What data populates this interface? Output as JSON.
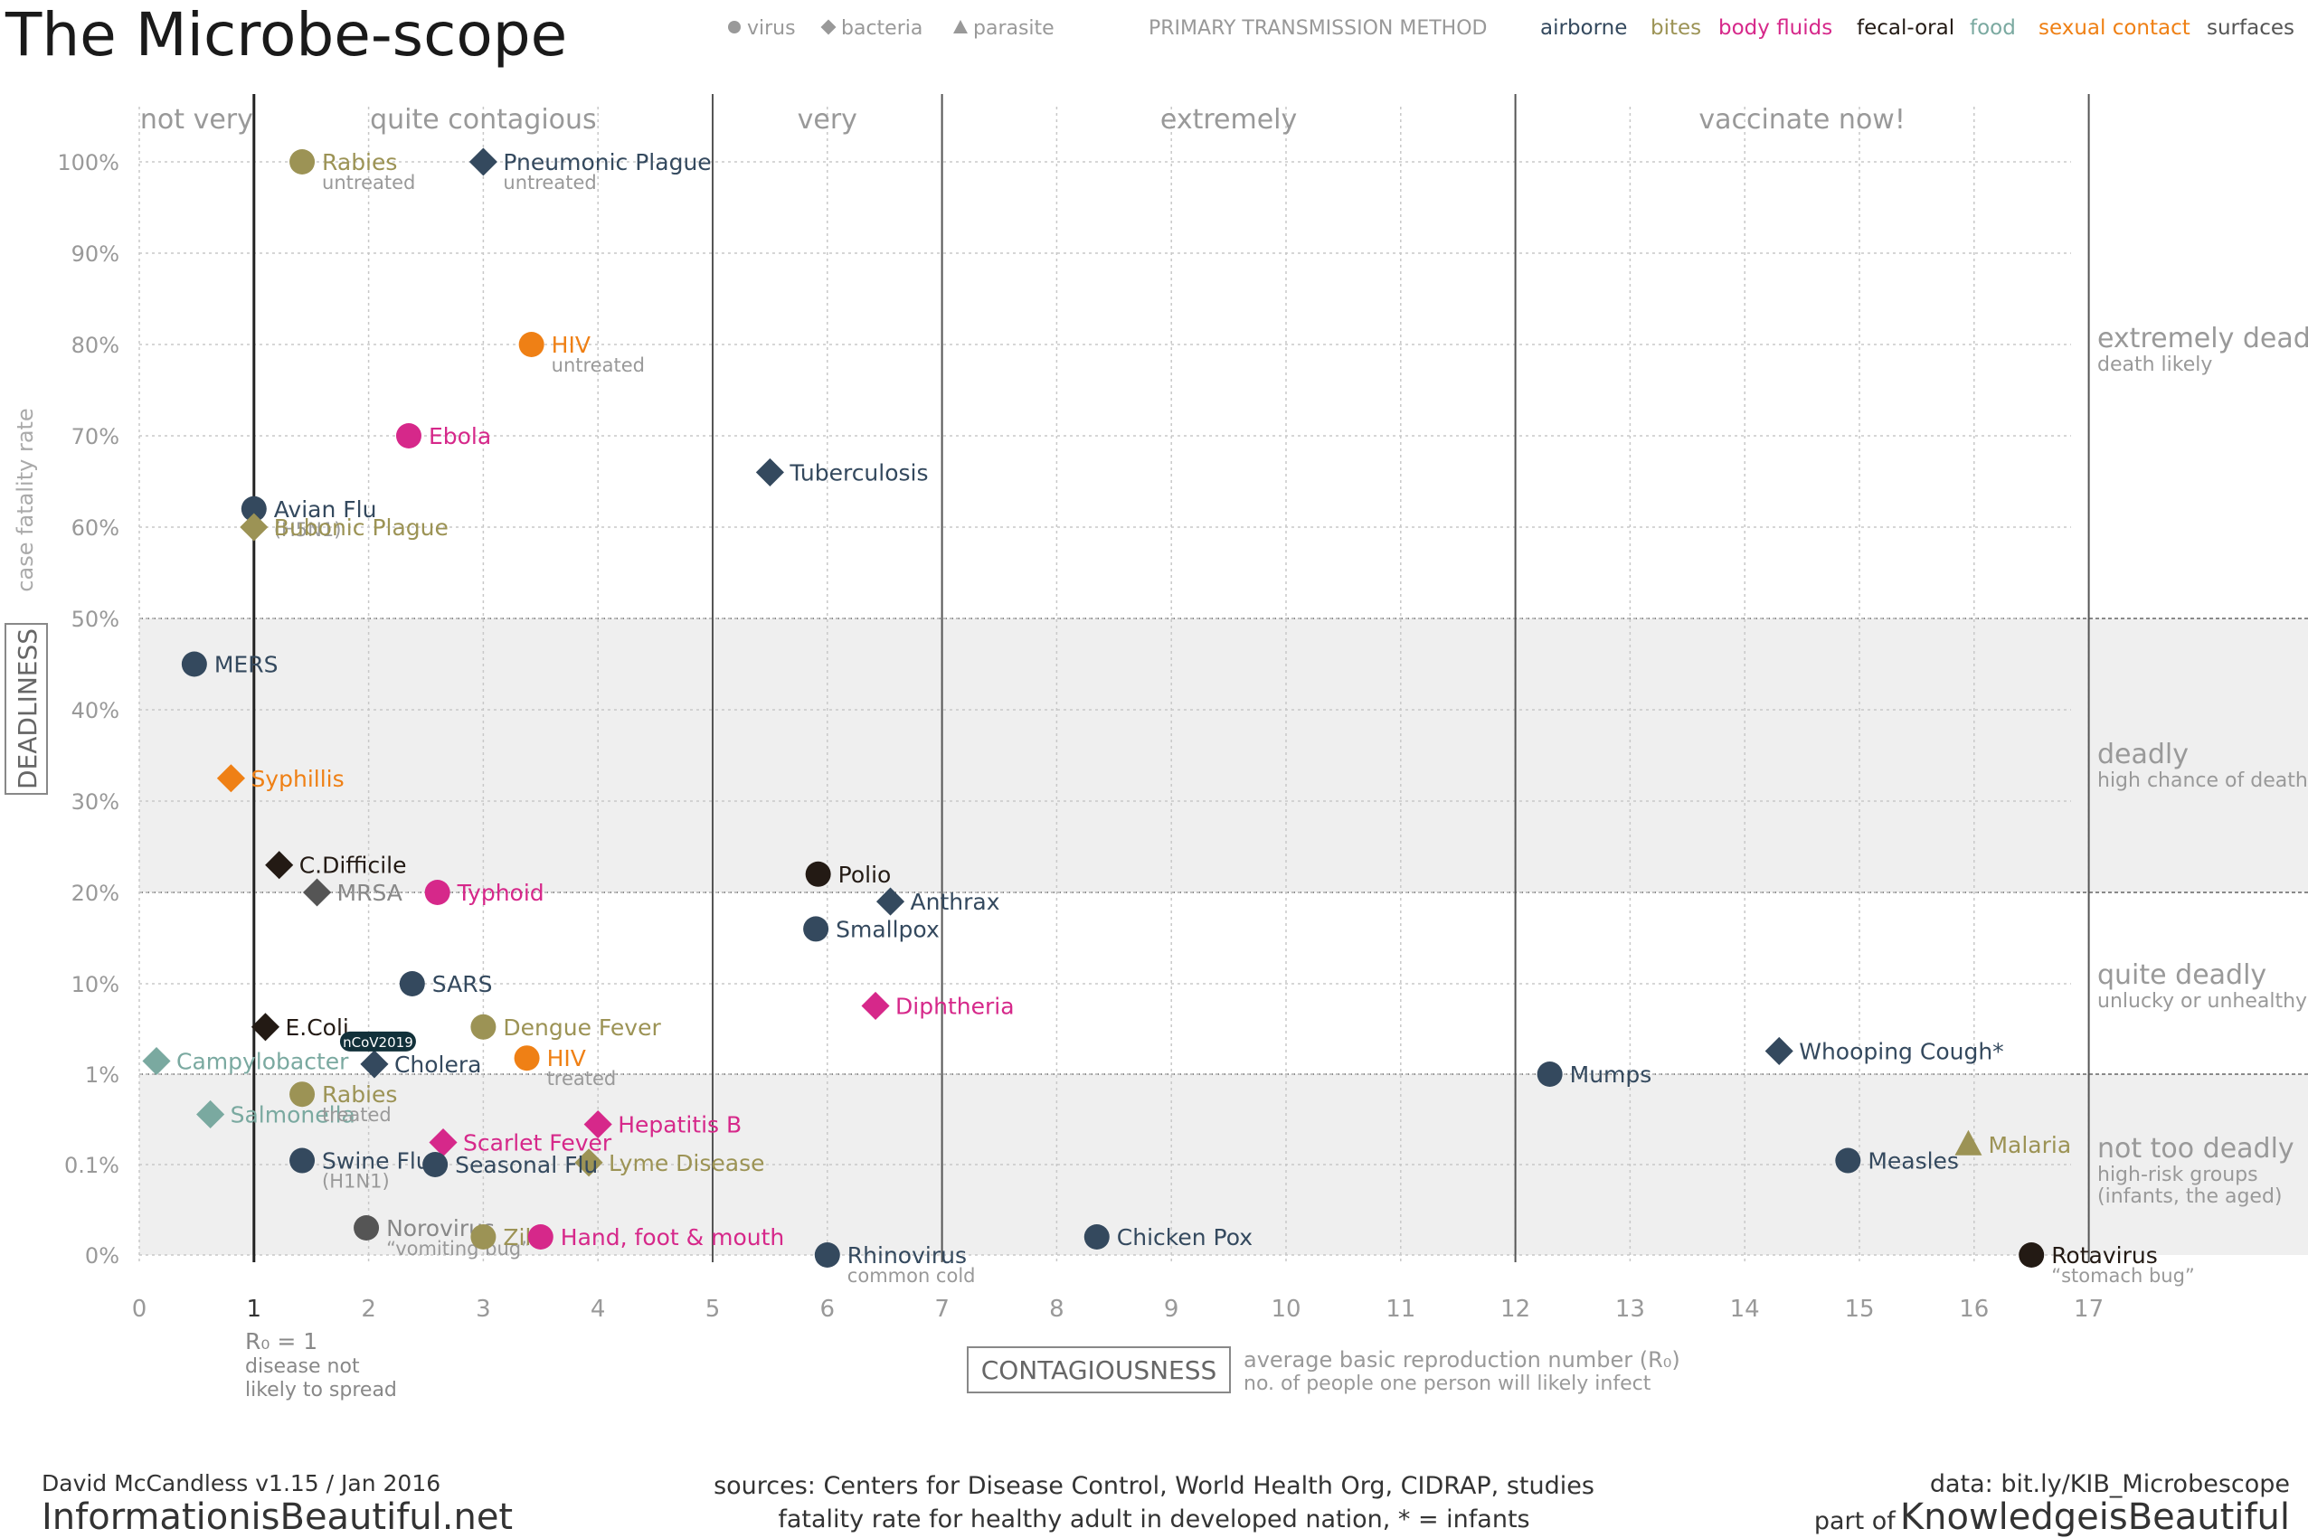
{
  "title": "The Microbe-scope",
  "legend": {
    "types": [
      {
        "name": "virus",
        "shape": "circle"
      },
      {
        "name": "bacteria",
        "shape": "diamond"
      },
      {
        "name": "parasite",
        "shape": "triangle"
      }
    ],
    "transmission_heading": "PRIMARY TRANSMISSION METHOD",
    "transmission": [
      {
        "name": "airborne",
        "color": "#34495e"
      },
      {
        "name": "bites",
        "color": "#9c9355"
      },
      {
        "name": "body fluids",
        "color": "#d6288a"
      },
      {
        "name": "fecal-oral",
        "color": "#231a14"
      },
      {
        "name": "food",
        "color": "#7aa9a0"
      },
      {
        "name": "sexual contact",
        "color": "#ef8015"
      },
      {
        "name": "surfaces",
        "color": "#555555"
      }
    ]
  },
  "footer": {
    "author": "David McCandless v1.15 / Jan 2016",
    "site": "InformationisBeautiful.net",
    "sources_line1": "sources: Centers for Disease Control, World Health Org, CIDRAP, studies",
    "sources_line2": "fatality rate for healthy adult in developed nation, * = infants",
    "data": "data: bit.ly/KIB_Microbescope",
    "part_of": "part of",
    "brand": "KnowledgeisBeautiful"
  },
  "chart_data": {
    "type": "scatter",
    "title": "The Microbe-scope",
    "xlabel": "CONTAGIOUSNESS",
    "xlabel_note1": "average basic reproduction number (R₀)",
    "xlabel_note2": "no. of people one person will likely infect",
    "ylabel": "DEADLINESS",
    "ylabel_note": "case fatality rate",
    "xlim": [
      0,
      17
    ],
    "x_ticks": [
      "0",
      "1",
      "2",
      "3",
      "4",
      "5",
      "6",
      "7",
      "8",
      "9",
      "10",
      "11",
      "12",
      "13",
      "14",
      "15",
      "16",
      "17"
    ],
    "r0_note": [
      "R₀ = 1",
      "disease not",
      "likely to spread"
    ],
    "y_ticks": [
      "0%",
      "0.1%",
      "1%",
      "10%",
      "20%",
      "30%",
      "40%",
      "50%",
      "60%",
      "70%",
      "80%",
      "90%",
      "100%"
    ],
    "y_scale": "piecewise: 0%, 0.1%, 1% then linear 10%-100%",
    "grid": true,
    "contagiousness_bands": [
      {
        "label": "not very",
        "from": 0,
        "to": 1
      },
      {
        "label": "quite contagious",
        "from": 1,
        "to": 5
      },
      {
        "label": "very",
        "from": 5,
        "to": 7
      },
      {
        "label": "extremely",
        "from": 7,
        "to": 12
      },
      {
        "label": "vaccinate now!",
        "from": 12,
        "to": 17
      }
    ],
    "deadliness_bands": [
      {
        "label": "extremely deadly",
        "sub": [
          "death likely"
        ],
        "from": 50,
        "to": 100,
        "shaded": false
      },
      {
        "label": "deadly",
        "sub": [
          "high chance of death"
        ],
        "from": 20,
        "to": 50,
        "shaded": true
      },
      {
        "label": "quite deadly",
        "sub": [
          "unlucky or unhealthy"
        ],
        "from": 1,
        "to": 20,
        "shaded": false
      },
      {
        "label": "not too deadly",
        "sub": [
          "high-risk groups",
          "(infants, the aged)"
        ],
        "from": 0,
        "to": 1,
        "shaded": true
      }
    ],
    "points": [
      {
        "name": "Rabies",
        "note": "untreated",
        "x": 1.42,
        "y": 100,
        "type": "virus",
        "transmission": "bites"
      },
      {
        "name": "Pneumonic Plague",
        "note": "untreated",
        "x": 3.0,
        "y": 100,
        "type": "bacteria",
        "transmission": "airborne"
      },
      {
        "name": "HIV",
        "note": "untreated",
        "x": 3.42,
        "y": 80,
        "type": "virus",
        "transmission": "sexual contact"
      },
      {
        "name": "Ebola",
        "note": "",
        "x": 2.35,
        "y": 70,
        "type": "virus",
        "transmission": "body fluids"
      },
      {
        "name": "Tuberculosis",
        "note": "",
        "x": 5.5,
        "y": 66,
        "type": "bacteria",
        "transmission": "airborne"
      },
      {
        "name": "Avian Flu",
        "note": "(H5N1)",
        "x": 1.0,
        "y": 62,
        "type": "virus",
        "transmission": "airborne"
      },
      {
        "name": "Bubonic Plague",
        "note": "",
        "x": 1.0,
        "y": 60,
        "type": "bacteria",
        "transmission": "bites"
      },
      {
        "name": "MERS",
        "note": "",
        "x": 0.48,
        "y": 45,
        "type": "virus",
        "transmission": "airborne"
      },
      {
        "name": "Syphillis",
        "note": "",
        "x": 0.8,
        "y": 32.5,
        "type": "bacteria",
        "transmission": "sexual contact"
      },
      {
        "name": "C.Difficile",
        "note": "",
        "x": 1.22,
        "y": 23,
        "type": "bacteria",
        "transmission": "fecal-oral"
      },
      {
        "name": "MRSA",
        "note": "",
        "x": 1.55,
        "y": 20,
        "type": "bacteria",
        "transmission": "surfaces"
      },
      {
        "name": "Typhoid",
        "note": "",
        "x": 2.6,
        "y": 20,
        "type": "virus",
        "transmission": "body fluids"
      },
      {
        "name": "Polio",
        "note": "",
        "x": 5.92,
        "y": 22,
        "type": "virus",
        "transmission": "fecal-oral"
      },
      {
        "name": "Anthrax",
        "note": "",
        "x": 6.55,
        "y": 19,
        "type": "bacteria",
        "transmission": "airborne"
      },
      {
        "name": "Smallpox",
        "note": "",
        "x": 5.9,
        "y": 16,
        "type": "virus",
        "transmission": "airborne"
      },
      {
        "name": "SARS",
        "note": "",
        "x": 2.38,
        "y": 10,
        "type": "virus",
        "transmission": "airborne"
      },
      {
        "name": "Diphtheria",
        "note": "",
        "x": 6.42,
        "y": 7.8,
        "type": "bacteria",
        "transmission": "body fluids"
      },
      {
        "name": "E.Coli",
        "note": "",
        "x": 1.1,
        "y": 5.7,
        "type": "bacteria",
        "transmission": "fecal-oral"
      },
      {
        "name": "Dengue Fever",
        "note": "",
        "x": 3.0,
        "y": 5.7,
        "type": "virus",
        "transmission": "bites"
      },
      {
        "name": "Campylobacter",
        "note": "",
        "x": 0.15,
        "y": 2.3,
        "type": "bacteria",
        "transmission": "food"
      },
      {
        "name": "Cholera",
        "note": "",
        "x": 2.05,
        "y": 2.0,
        "type": "bacteria",
        "transmission": "airborne"
      },
      {
        "name": "HIV",
        "note": "treated",
        "x": 3.38,
        "y": 2.6,
        "type": "virus",
        "transmission": "sexual contact"
      },
      {
        "name": "Salmonella",
        "note": "",
        "x": 0.62,
        "y": 0.6,
        "type": "bacteria",
        "transmission": "food"
      },
      {
        "name": "Rabies",
        "note": "treated",
        "x": 1.42,
        "y": 0.8,
        "type": "virus",
        "transmission": "bites"
      },
      {
        "name": "Hepatitis B",
        "note": "",
        "x": 4.0,
        "y": 0.5,
        "type": "bacteria",
        "transmission": "body fluids"
      },
      {
        "name": "Scarlet Fever",
        "note": "",
        "x": 2.65,
        "y": 0.32,
        "type": "bacteria",
        "transmission": "body fluids"
      },
      {
        "name": "Swine Flu",
        "note": "(H1N1)",
        "x": 1.42,
        "y": 0.14,
        "type": "virus",
        "transmission": "airborne"
      },
      {
        "name": "Lyme Disease",
        "note": "",
        "x": 3.92,
        "y": 0.12,
        "type": "bacteria",
        "transmission": "bites"
      },
      {
        "name": "Seasonal Flu",
        "note": "",
        "x": 2.58,
        "y": 0.1,
        "type": "virus",
        "transmission": "airborne"
      },
      {
        "name": "Norovirus",
        "note": "“vomiting bug”",
        "x": 1.98,
        "y": 0.03,
        "type": "virus",
        "transmission": "surfaces"
      },
      {
        "name": "Zika",
        "note": "",
        "x": 3.0,
        "y": 0.02,
        "type": "virus",
        "transmission": "bites"
      },
      {
        "name": "Hand, foot & mouth",
        "note": "",
        "x": 3.5,
        "y": 0.02,
        "type": "virus",
        "transmission": "body fluids"
      },
      {
        "name": "Rhinovirus",
        "note": "common cold",
        "x": 6.0,
        "y": 0.0,
        "type": "virus",
        "transmission": "airborne"
      },
      {
        "name": "Chicken Pox",
        "note": "",
        "x": 8.35,
        "y": 0.02,
        "type": "virus",
        "transmission": "airborne"
      },
      {
        "name": "Mumps",
        "note": "",
        "x": 12.3,
        "y": 1.0,
        "type": "virus",
        "transmission": "airborne"
      },
      {
        "name": "Whooping Cough*",
        "note": "",
        "x": 14.3,
        "y": 3.3,
        "type": "bacteria",
        "transmission": "airborne"
      },
      {
        "name": "Measles",
        "note": "",
        "x": 14.9,
        "y": 0.14,
        "type": "virus",
        "transmission": "airborne"
      },
      {
        "name": "Malaria",
        "note": "",
        "x": 15.95,
        "y": 0.3,
        "type": "parasite",
        "transmission": "bites"
      },
      {
        "name": "Rotavirus",
        "note": "“stomach bug”",
        "x": 16.5,
        "y": 0.0,
        "type": "virus",
        "transmission": "fecal-oral"
      }
    ],
    "annotations": [
      {
        "text": "nCoV2019",
        "near": "Cholera"
      }
    ]
  }
}
